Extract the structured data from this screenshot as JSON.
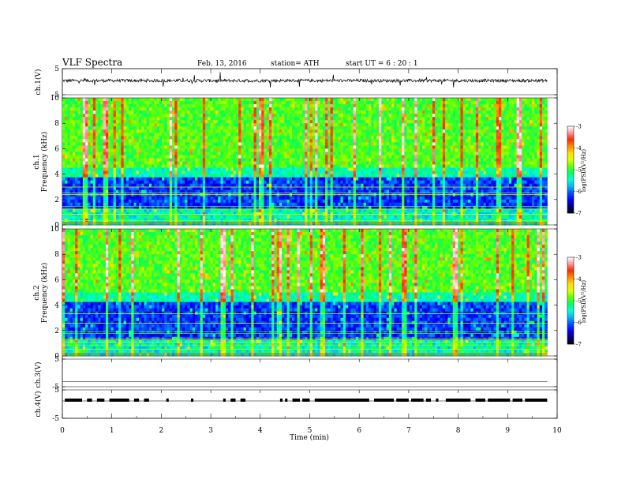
{
  "header": {
    "title": "VLF Spectra",
    "date": "Feb. 13, 2016",
    "station": "station= ATH",
    "start": "start  UT  =   6  : 20 : 1"
  },
  "chart_data": {
    "type": "heatmap",
    "xlabel": "Time  (min)",
    "xlim": [
      0,
      10
    ],
    "x_ticks": [
      "0",
      "1",
      "2",
      "3",
      "4",
      "5",
      "6",
      "7",
      "8",
      "9",
      "10"
    ],
    "data_end_min": 9.8,
    "panels": [
      {
        "ylabel": "ch.1(V)",
        "ylim": [
          -5,
          5
        ],
        "y_ticks": [
          "5",
          "-5"
        ],
        "kind": "waveform",
        "baseline": 0.4,
        "noise_amplitude": 0.6
      },
      {
        "ylabel_top": "ch.1",
        "ylabel": "Frequency  (kHz)",
        "ylim": [
          0,
          10
        ],
        "y_ticks": [
          "0",
          "2",
          "4",
          "6",
          "8",
          "10"
        ],
        "kind": "spectrogram",
        "strong_above_khz": 4.5,
        "weak_below_khz": 3.8,
        "colorbar": {
          "label": "log(PSD(V²/Hz)",
          "ticks": [
            "-3",
            "-4",
            "-5",
            "-6",
            "-7"
          ],
          "range": [
            -7,
            -3
          ]
        }
      },
      {
        "ylabel_top": "ch.2",
        "ylabel": "Frequency  (kHz)",
        "ylim": [
          0,
          10
        ],
        "y_ticks": [
          "0",
          "2",
          "4",
          "6",
          "8",
          "10"
        ],
        "kind": "spectrogram",
        "strong_above_khz": 5,
        "weak_below_khz": 4.2,
        "colorbar": {
          "label": "log(PSD(V²/Hz)",
          "ticks": [
            "-3",
            "-4",
            "-5",
            "-6",
            "-7"
          ],
          "range": [
            -7,
            -3
          ]
        }
      },
      {
        "ylabel": "ch.3(V)",
        "ylim": [
          -5,
          5
        ],
        "y_ticks": [
          "5",
          "-5"
        ],
        "kind": "flat"
      },
      {
        "ylabel": "ch.4(V)",
        "ylim": [
          -5,
          5
        ],
        "y_ticks": [
          "5",
          "-5"
        ],
        "kind": "pulses",
        "pulse_segments_min": [
          [
            0.05,
            0.4
          ],
          [
            0.5,
            0.6
          ],
          [
            0.7,
            0.85
          ],
          [
            0.95,
            1.35
          ],
          [
            1.45,
            1.55
          ],
          [
            1.65,
            1.75
          ],
          [
            2.1,
            2.15
          ],
          [
            2.6,
            2.65
          ],
          [
            3.25,
            3.3
          ],
          [
            3.4,
            3.5
          ],
          [
            3.6,
            3.7
          ],
          [
            4.4,
            4.45
          ],
          [
            4.5,
            4.55
          ],
          [
            4.65,
            4.8
          ],
          [
            4.85,
            5.0
          ],
          [
            5.1,
            6.2
          ],
          [
            6.3,
            6.7
          ],
          [
            6.75,
            7.0
          ],
          [
            7.05,
            7.3
          ],
          [
            7.35,
            7.45
          ],
          [
            7.55,
            7.6
          ],
          [
            7.75,
            8.25
          ],
          [
            8.35,
            8.55
          ],
          [
            8.6,
            9.05
          ],
          [
            9.1,
            9.3
          ],
          [
            9.35,
            9.8
          ]
        ]
      }
    ]
  },
  "colors": {
    "colormap": [
      "#000000",
      "#000080",
      "#0000ff",
      "#0050ff",
      "#00b4ff",
      "#00ffd2",
      "#00ff64",
      "#64ff00",
      "#dcff00",
      "#ffdc00",
      "#ff8c00",
      "#ff2800",
      "#ff9696",
      "#ffffff"
    ]
  }
}
